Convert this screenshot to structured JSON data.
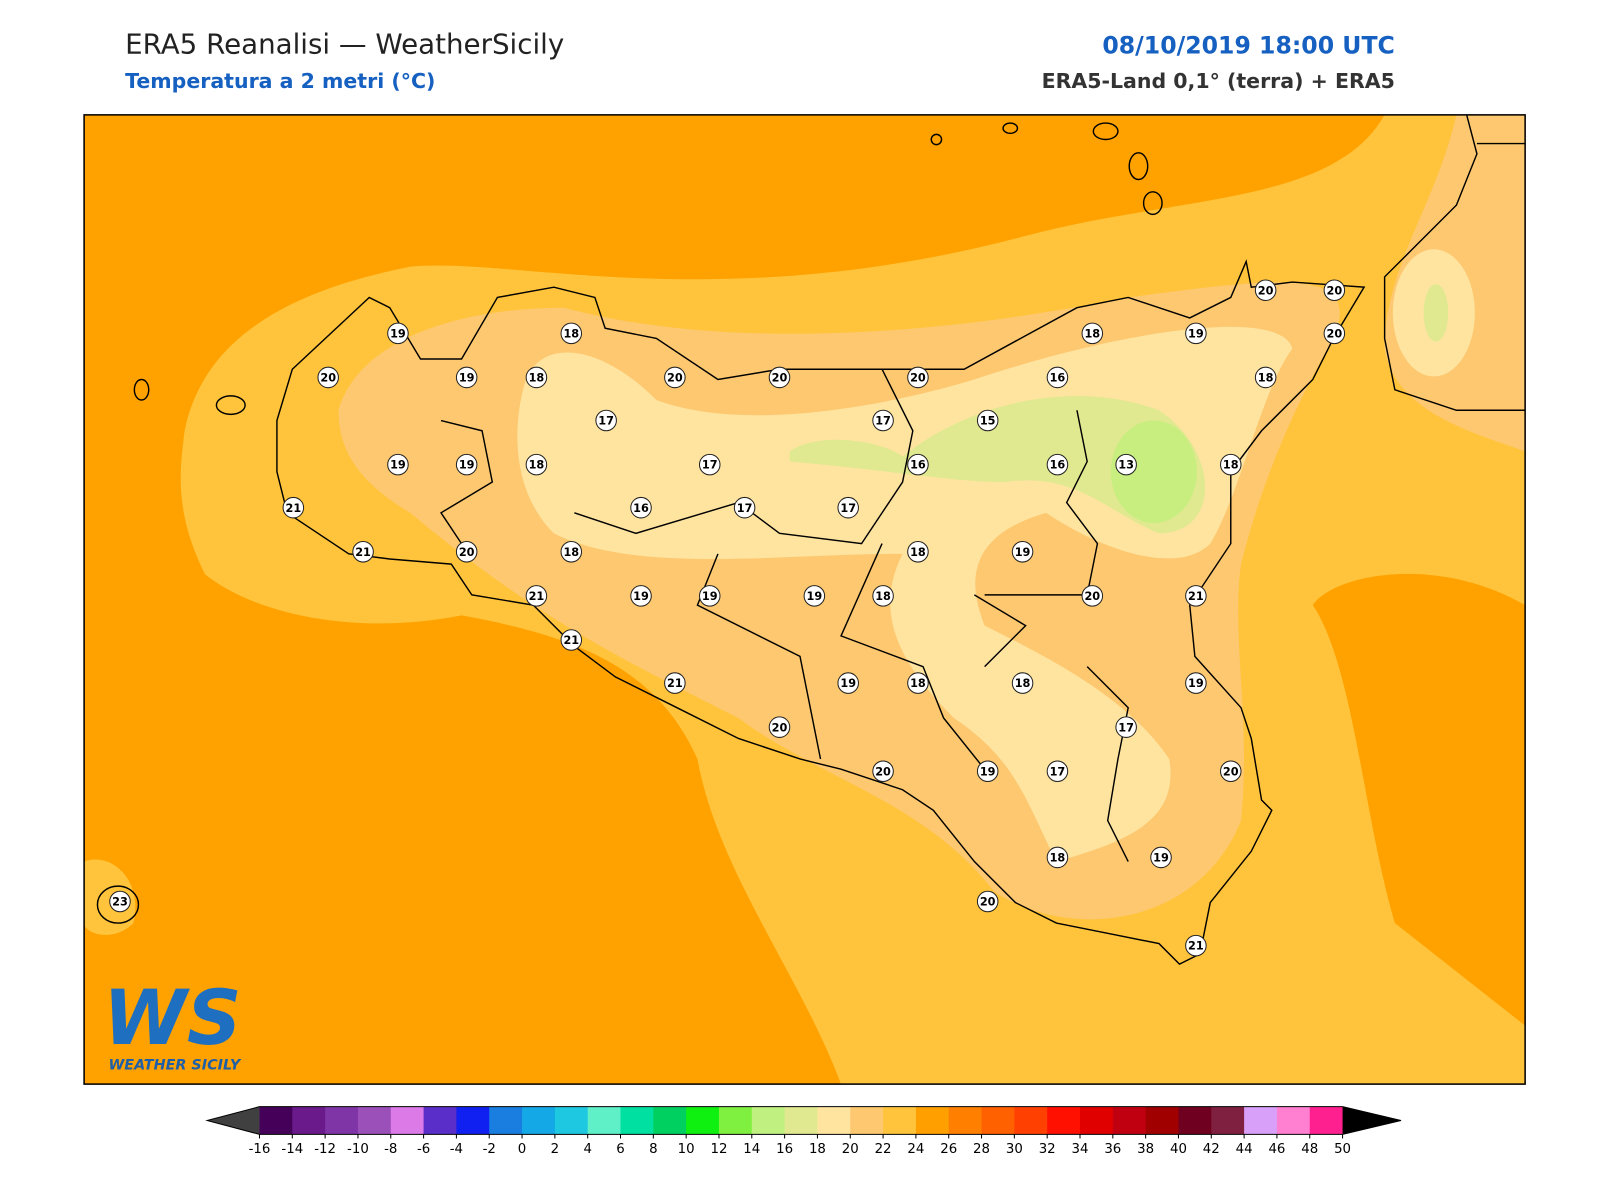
{
  "header": {
    "title": "ERA5 Reanalisi — WeatherSicily",
    "subtitle": "Temperatura a 2 metri (°C)",
    "datetime": "08/10/2019 18:00 UTC",
    "source": "ERA5-Land 0,1° (terra) + ERA5"
  },
  "map": {
    "stations": [
      19,
      18,
      20,
      19,
      18,
      20,
      20,
      20,
      18,
      19,
      20,
      20,
      20,
      16,
      18,
      17,
      17,
      15,
      19,
      19,
      18,
      17,
      16,
      16,
      13,
      18,
      21,
      16,
      17,
      17,
      21,
      20,
      18,
      18,
      19,
      21,
      19,
      19,
      19,
      18,
      20,
      21,
      21,
      21,
      19,
      18,
      18,
      19,
      17,
      20,
      20,
      19,
      17,
      20,
      18,
      19,
      20,
      21,
      23
    ]
  },
  "logo": {
    "mark": "WS",
    "name": "WEATHER SICILY"
  },
  "colorbar": {
    "ticks": [
      -16,
      -14,
      -12,
      -10,
      -8,
      -6,
      -4,
      -2,
      0,
      2,
      4,
      6,
      8,
      10,
      12,
      14,
      16,
      18,
      20,
      22,
      24,
      26,
      28,
      30,
      32,
      34,
      36,
      38,
      40,
      42,
      44,
      46,
      48,
      50
    ],
    "colors": [
      "#45005a",
      "#6a1a8a",
      "#7f35a6",
      "#9b4fb8",
      "#dc7ae8",
      "#5a2ec8",
      "#1020f0",
      "#1a7ee0",
      "#14a8e6",
      "#1ec8e0",
      "#5ff0c8",
      "#00e0a0",
      "#00d060",
      "#10f010",
      "#80f040",
      "#c0f080",
      "#e0e890",
      "#ffe4a0",
      "#fdc870",
      "#ffc43c",
      "#ffa000",
      "#ff8000",
      "#ff6000",
      "#ff4000",
      "#ff1000",
      "#e00000",
      "#c00010",
      "#a00000",
      "#700020",
      "#802040",
      "#d8a0f8",
      "#ff80d0",
      "#ff2090",
      "#808080",
      "#404040"
    ],
    "extend_colors": [
      "#404040",
      "#000000"
    ]
  }
}
